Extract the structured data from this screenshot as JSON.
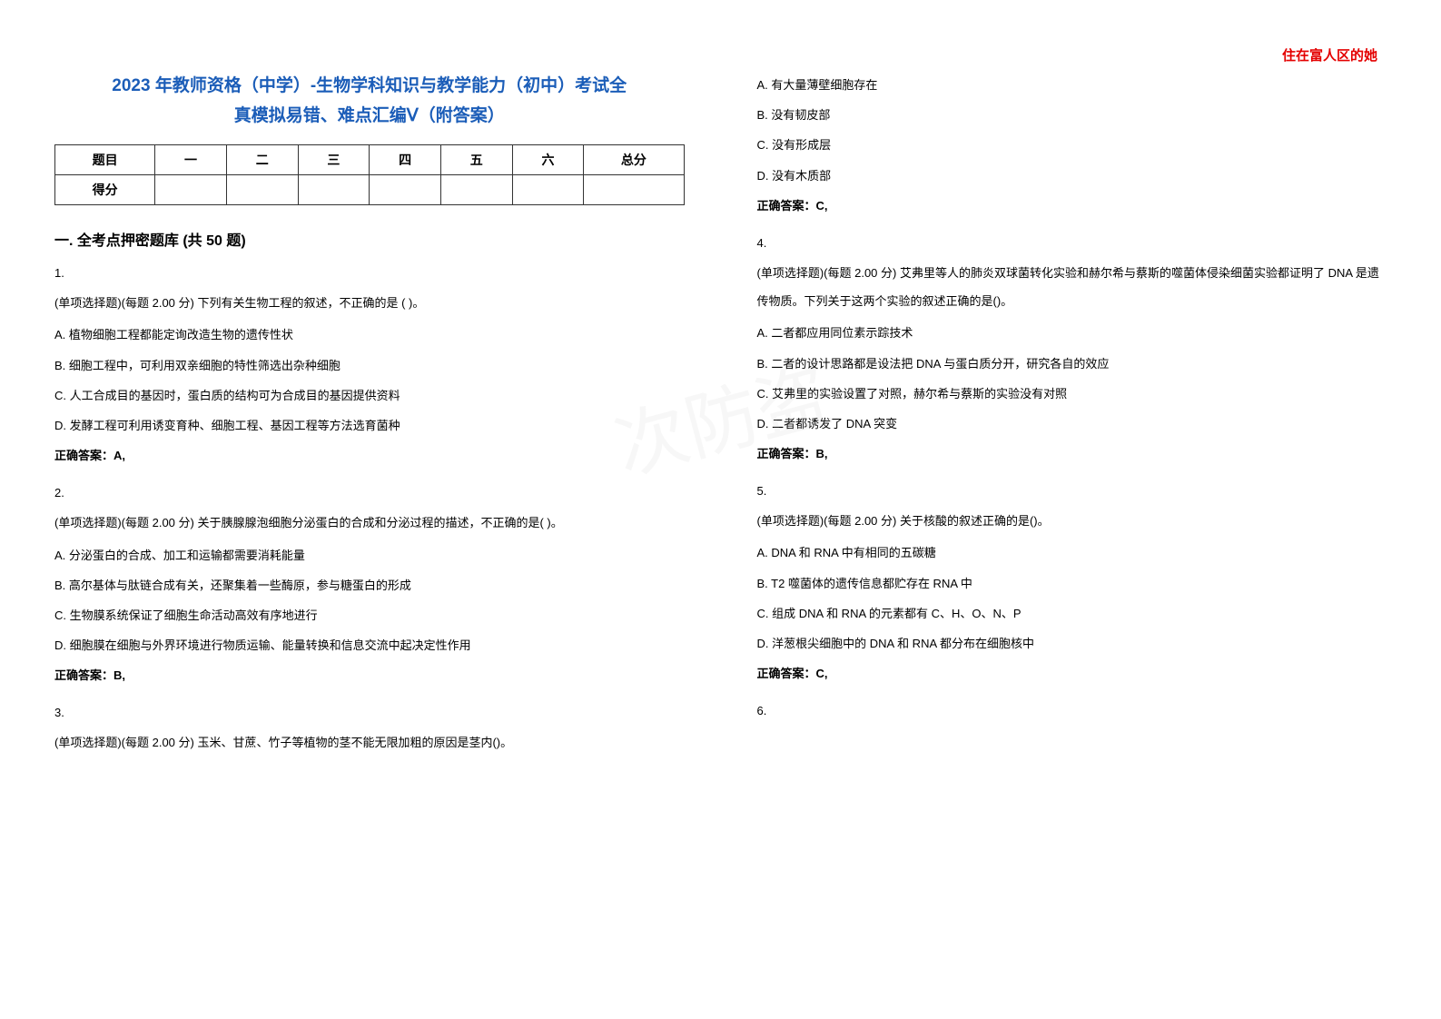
{
  "watermark": "住在富人区的她",
  "title_line1": "2023 年教师资格（中学）-生物学科知识与教学能力（初中）考试全",
  "title_line2": "真模拟易错、难点汇编Ⅴ（附答案）",
  "score_table": {
    "headers": [
      "题目",
      "一",
      "二",
      "三",
      "四",
      "五",
      "六",
      "总分"
    ],
    "row_label": "得分"
  },
  "section_heading": "一. 全考点押密题库 (共 50 题)",
  "questions": [
    {
      "num": "1.",
      "text": "(单项选择题)(每题 2.00 分) 下列有关生物工程的叙述，不正确的是 ( )。",
      "options": [
        "A. 植物细胞工程都能定询改造生物的遗传性状",
        "B. 细胞工程中，可利用双亲细胞的特性筛选出杂种细胞",
        "C. 人工合成目的基因时，蛋白质的结构可为合成目的基因提供资料",
        "D. 发酵工程可利用诱变育种、细胞工程、基因工程等方法选育菌种"
      ],
      "answer": "正确答案：A,"
    },
    {
      "num": "2.",
      "text": "(单项选择题)(每题 2.00 分) 关于胰腺腺泡细胞分泌蛋白的合成和分泌过程的描述，不正确的是( )。",
      "options": [
        "A. 分泌蛋白的合成、加工和运输都需要消耗能量",
        "B. 高尔基体与肽链合成有关，还聚集着一些酶原，参与糖蛋白的形成",
        "C. 生物膜系统保证了细胞生命活动高效有序地进行",
        "D. 细胞膜在细胞与外界环境进行物质运输、能量转换和信息交流中起决定性作用"
      ],
      "answer": "正确答案：B,"
    },
    {
      "num": "3.",
      "text": "(单项选择题)(每题 2.00 分) 玉米、甘蔗、竹子等植物的茎不能无限加粗的原因是茎内()。",
      "options": [],
      "answer": ""
    }
  ],
  "right_questions": [
    {
      "num": "",
      "text": "",
      "options": [
        "A. 有大量薄壁细胞存在",
        "B. 没有韧皮部",
        "C. 没有形成层",
        "D. 没有木质部"
      ],
      "answer": "正确答案：C,"
    },
    {
      "num": "4.",
      "text": "(单项选择题)(每题 2.00 分) 艾弗里等人的肺炎双球菌转化实验和赫尔希与蔡斯的噬菌体侵染细菌实验都证明了 DNA 是遗传物质。下列关于这两个实验的叙述正确的是()。",
      "options": [
        "A. 二者都应用同位素示踪技术",
        "B. 二者的设计思路都是设法把 DNA 与蛋白质分开，研究各自的效应",
        "C. 艾弗里的实验设置了对照，赫尔希与蔡斯的实验没有对照",
        "D. 二者都诱发了 DNA 突变"
      ],
      "answer": "正确答案：B,"
    },
    {
      "num": "5.",
      "text": "(单项选择题)(每题 2.00 分) 关于核酸的叙述正确的是()。",
      "options": [
        "A. DNA 和 RNA 中有相同的五碳糖",
        "B. T2 噬菌体的遗传信息都贮存在 RNA 中",
        "C. 组成 DNA 和 RNA 的元素都有 C、H、O、N、P",
        "D. 洋葱根尖细胞中的 DNA 和 RNA 都分布在细胞核中"
      ],
      "answer": "正确答案：C,"
    },
    {
      "num": "6.",
      "text": "",
      "options": [],
      "answer": ""
    }
  ],
  "bg_watermark": "次防盗"
}
